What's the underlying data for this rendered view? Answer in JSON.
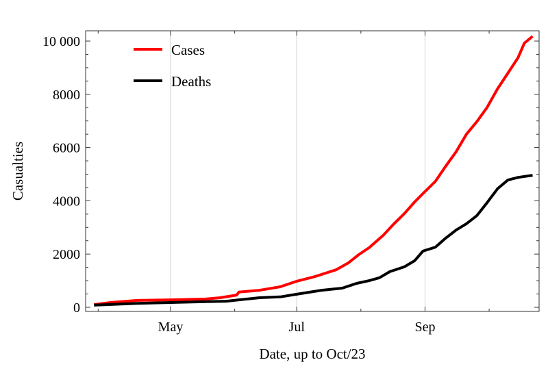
{
  "chart_data": {
    "type": "line",
    "title": "",
    "xlabel": "Date, up to Oct/23",
    "ylabel": "Casualties",
    "x_unit": "days since May 1",
    "xlim": [
      -41,
      180
    ],
    "ylim": [
      0,
      10200
    ],
    "yticks": [
      0,
      2000,
      4000,
      6000,
      8000,
      10000
    ],
    "ytick_labels": [
      "0",
      "2000",
      "4000",
      "6000",
      "8000",
      "10 000"
    ],
    "xticks": [
      {
        "day": 0,
        "label": "May"
      },
      {
        "day": 61,
        "label": "Jul"
      },
      {
        "day": 123,
        "label": "Sep"
      }
    ],
    "grid": "vertical at labeled months",
    "legend": "top-left",
    "series": [
      {
        "name": "Cases",
        "color": "#ff0000",
        "x": [
          -37,
          -29,
          -16,
          0,
          17,
          24,
          32,
          33,
          43,
          53,
          61,
          70,
          80,
          86,
          91,
          96,
          103,
          108,
          113,
          118,
          122,
          128,
          133,
          138,
          143,
          148,
          153,
          158,
          163,
          168,
          171,
          175
        ],
        "y": [
          100,
          180,
          260,
          280,
          310,
          360,
          460,
          570,
          640,
          770,
          980,
          1160,
          1410,
          1670,
          1980,
          2240,
          2720,
          3140,
          3520,
          3960,
          4270,
          4730,
          5300,
          5840,
          6500,
          6970,
          7510,
          8200,
          8790,
          9380,
          9920,
          10180
        ]
      },
      {
        "name": "Deaths",
        "color": "#000000",
        "x": [
          -37,
          -16,
          0,
          17,
          27,
          33,
          43,
          53,
          61,
          73,
          83,
          90,
          96,
          101,
          106,
          113,
          118,
          122,
          128,
          133,
          138,
          143,
          148,
          153,
          158,
          163,
          168,
          175
        ],
        "y": [
          80,
          150,
          180,
          210,
          230,
          280,
          360,
          390,
          490,
          640,
          720,
          900,
          1000,
          1110,
          1340,
          1520,
          1750,
          2110,
          2260,
          2600,
          2900,
          3140,
          3440,
          3930,
          4450,
          4780,
          4880,
          4960
        ]
      }
    ]
  }
}
